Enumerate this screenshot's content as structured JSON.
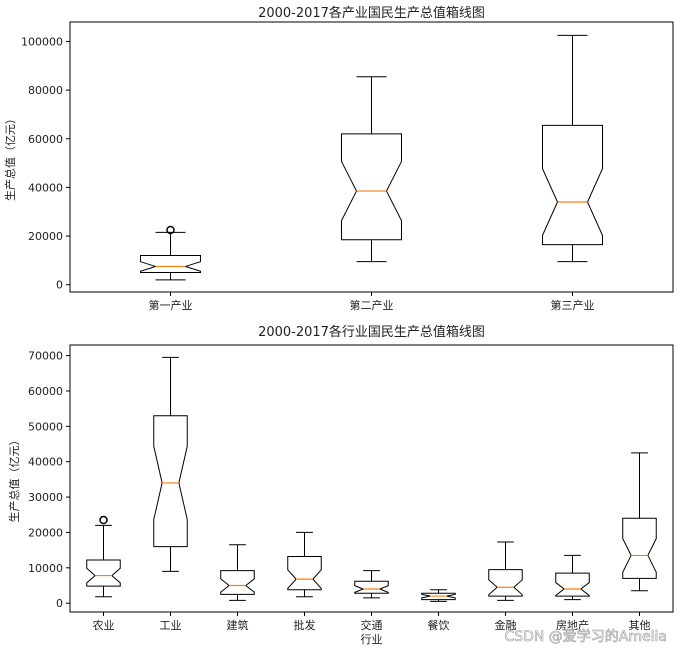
{
  "chart_data": [
    {
      "type": "box",
      "title": "2000-2017各产业国民生产总值箱线图",
      "ylabel": "生产总值（亿元）",
      "ylim": [
        -3000,
        108000
      ],
      "yticks": [
        0,
        20000,
        40000,
        60000,
        80000,
        100000
      ],
      "notched": true,
      "categories": [
        "第一产业",
        "第二产业",
        "第三产业"
      ],
      "boxes": [
        {
          "whisker_low": 2000,
          "q1": 5000,
          "median": 7500,
          "q3": 12000,
          "whisker_high": 21500,
          "outliers": [
            22500
          ]
        },
        {
          "whisker_low": 9500,
          "q1": 18500,
          "median": 38500,
          "q3": 62000,
          "whisker_high": 85500,
          "outliers": []
        },
        {
          "whisker_low": 9500,
          "q1": 16500,
          "median": 34000,
          "q3": 65500,
          "whisker_high": 102500,
          "outliers": []
        }
      ]
    },
    {
      "type": "box",
      "title": "2000-2017各行业国民生产总值箱线图",
      "ylabel": "生产总值（亿元）",
      "ylim": [
        -2500,
        73000
      ],
      "yticks": [
        0,
        10000,
        20000,
        30000,
        40000,
        50000,
        60000,
        70000
      ],
      "notched": true,
      "categories": [
        "农业",
        "工业",
        "建筑",
        "批发",
        "交通\n行业",
        "餐饮",
        "金融",
        "房地产",
        "其他"
      ],
      "boxes": [
        {
          "whisker_low": 1800,
          "q1": 4800,
          "median": 7800,
          "q3": 12200,
          "whisker_high": 22000,
          "outliers": [
            23500
          ]
        },
        {
          "whisker_low": 9000,
          "q1": 16000,
          "median": 34000,
          "q3": 53000,
          "whisker_high": 69500,
          "outliers": []
        },
        {
          "whisker_low": 800,
          "q1": 2500,
          "median": 5000,
          "q3": 9200,
          "whisker_high": 16500,
          "outliers": []
        },
        {
          "whisker_low": 1800,
          "q1": 3800,
          "median": 6800,
          "q3": 13200,
          "whisker_high": 20000,
          "outliers": []
        },
        {
          "whisker_low": 1500,
          "q1": 2800,
          "median": 4000,
          "q3": 6200,
          "whisker_high": 9200,
          "outliers": []
        },
        {
          "whisker_low": 500,
          "q1": 1000,
          "median": 2000,
          "q3": 2800,
          "whisker_high": 3800,
          "outliers": []
        },
        {
          "whisker_low": 800,
          "q1": 2000,
          "median": 4500,
          "q3": 9500,
          "whisker_high": 17300,
          "outliers": []
        },
        {
          "whisker_low": 1000,
          "q1": 2000,
          "median": 4000,
          "q3": 8500,
          "whisker_high": 13500,
          "outliers": []
        },
        {
          "whisker_low": 3500,
          "q1": 7000,
          "median": 13500,
          "q3": 24000,
          "whisker_high": 42500,
          "outliers": []
        }
      ]
    }
  ],
  "colors": {
    "box": "#000000",
    "median": "#ff7f0e",
    "outlier": "#000000"
  },
  "watermark": "CSDN @爱学习的Amelia"
}
